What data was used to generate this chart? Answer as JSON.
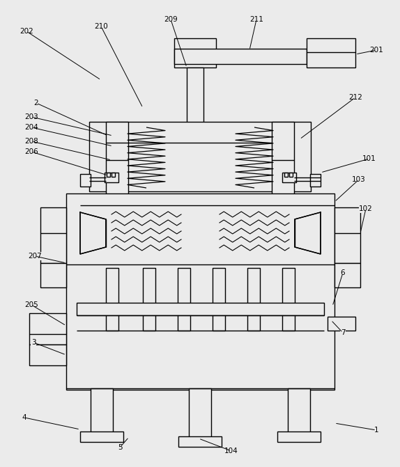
{
  "figsize": [
    5.74,
    6.71
  ],
  "dpi": 100,
  "bg_color": "#f0f0f0",
  "lw": 1.0
}
